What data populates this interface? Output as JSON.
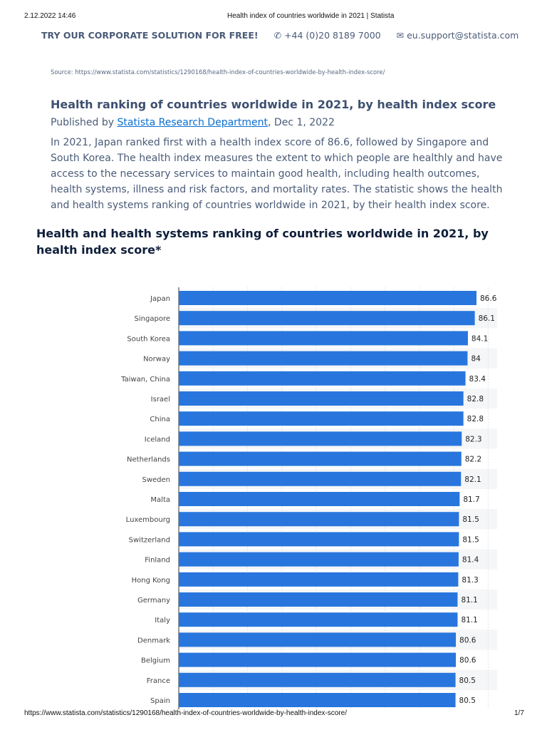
{
  "browser_header": {
    "datetime": "2.12.2022 14:46",
    "page_title": "Health index of countries worldwide in 2021 | Statista"
  },
  "promo": {
    "cta": "TRY OUR CORPORATE SOLUTION FOR FREE!",
    "phone_icon": "phone-icon",
    "phone": "+44 (0)20 8189 7000",
    "mail_icon": "envelope-icon",
    "email": "eu.support@statista.com"
  },
  "source": "Source: https://www.statista.com/statistics/1290168/health-index-of-countries-worldwide-by-health-index-score/",
  "article": {
    "title": "Health ranking of countries worldwide in 2021, by health index score",
    "published_prefix": "Published by ",
    "author": "Statista Research Department",
    "date": ", Dec 1, 2022",
    "description": "In 2021, Japan ranked first with a health index score of 86.6, followed by Singapore and South Korea. The health index measures the extent to which people are healthly and have access to the necessary services to maintain good health, including health outcomes, health systems, illness and risk factors, and mortality rates. The statistic shows the health and health systems ranking of countries worldwide in 2021, by their health index score."
  },
  "chart_data": {
    "type": "bar",
    "orientation": "horizontal",
    "title": "Health and health systems ranking of countries worldwide in 2021, by health index score*",
    "categories": [
      "Japan",
      "Singapore",
      "South Korea",
      "Norway",
      "Taiwan, China",
      "Israel",
      "China",
      "Iceland",
      "Netherlands",
      "Sweden",
      "Malta",
      "Luxembourg",
      "Switzerland",
      "Finland",
      "Hong Kong",
      "Germany",
      "Italy",
      "Denmark",
      "Belgium",
      "France",
      "Spain"
    ],
    "values": [
      86.6,
      86.1,
      84.1,
      84,
      83.4,
      82.8,
      82.8,
      82.3,
      82.2,
      82.1,
      81.7,
      81.5,
      81.5,
      81.4,
      81.3,
      81.1,
      81.1,
      80.6,
      80.6,
      80.5,
      80.5
    ],
    "xlim": [
      0,
      92
    ],
    "grid": true,
    "bar_color": "#2876dd",
    "data_labels": true
  },
  "footer": {
    "url": "https://www.statista.com/statistics/1290168/health-index-of-countries-worldwide-by-health-index-score/",
    "page": "1/7"
  }
}
